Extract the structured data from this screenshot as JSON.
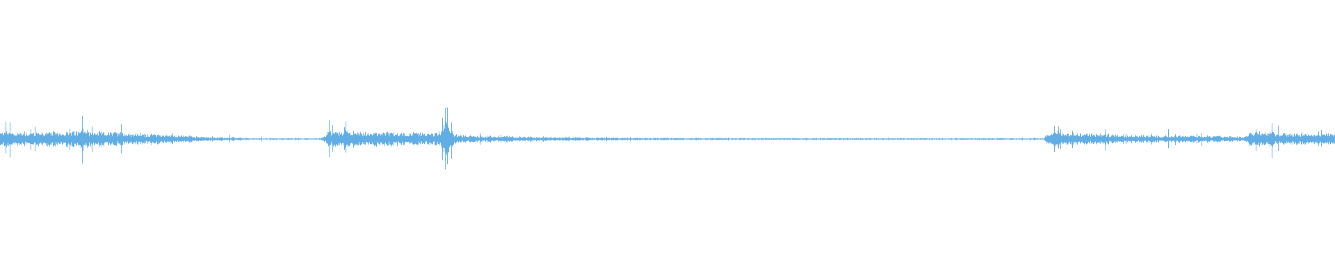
{
  "waveform": {
    "color": "#62ade3",
    "background": "#ffffff"
  }
}
